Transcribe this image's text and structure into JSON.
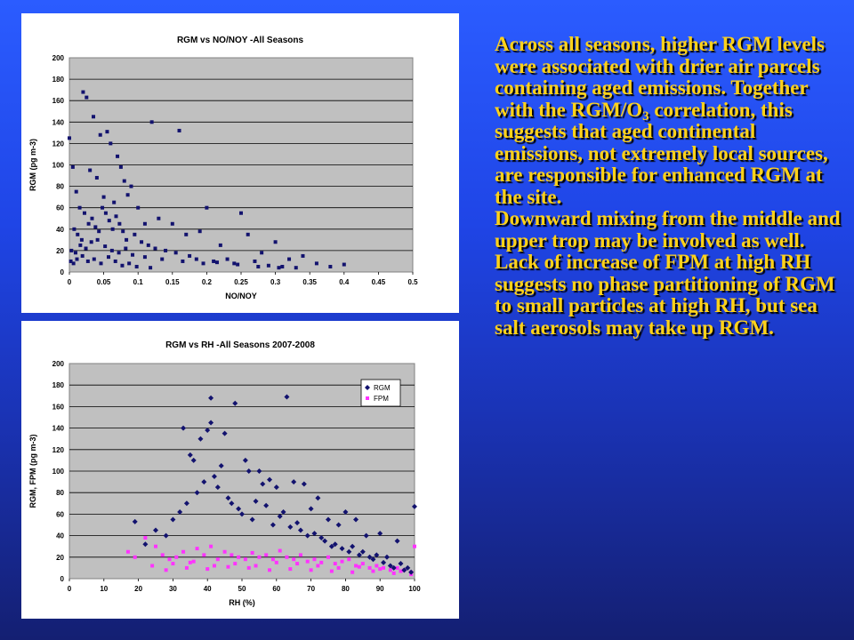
{
  "text": {
    "para1_a": "Across all seasons, higher RGM levels were associated with drier air parcels containing aged emissions.  Together with the RGM/O",
    "para1_sub": "3",
    "para1_b": " correlation, this suggests that aged continental emissions, not extremely local sources, are responsible for enhanced RGM at the site.",
    "para2": "Downward mixing from the middle and upper trop may be involved as well.",
    "para3": "Lack of increase of FPM at high RH suggests no phase partitioning of RGM to small particles at high RH, but sea salt aerosols may take up RGM."
  },
  "colors": {
    "rgm": "#12126e",
    "fpm": "#ff33ff",
    "plot_bg": "#c0c0c0",
    "text": "#ffd21a"
  },
  "chart_data": [
    {
      "type": "scatter",
      "title": "RGM vs NO/NOY -All Seasons",
      "xlabel": "NO/NOY",
      "ylabel": "RGM (pg m-3)",
      "xlim": [
        0,
        0.5
      ],
      "ylim": [
        0,
        200
      ],
      "xticks": [
        "0",
        "0.05",
        "0.1",
        "0.15",
        "0.2",
        "0.25",
        "0.3",
        "0.35",
        "0.4",
        "0.45",
        "0.5"
      ],
      "yticks": [
        "0",
        "20",
        "40",
        "60",
        "80",
        "100",
        "120",
        "140",
        "160",
        "180",
        "200"
      ],
      "grid": true,
      "legend": null,
      "series": [
        {
          "marker": "square",
          "x": [
            0.0,
            0.02,
            0.025,
            0.035,
            0.045,
            0.055,
            0.06,
            0.07,
            0.075,
            0.08,
            0.09,
            0.12,
            0.16,
            0.2,
            0.25,
            0.26,
            0.3,
            0.34,
            0.38,
            0.4,
            0.005,
            0.01,
            0.015,
            0.03,
            0.04,
            0.05,
            0.065,
            0.085,
            0.1,
            0.11,
            0.13,
            0.15,
            0.17,
            0.19,
            0.22,
            0.28,
            0.32,
            0.36,
            0.007,
            0.012,
            0.018,
            0.022,
            0.028,
            0.033,
            0.038,
            0.043,
            0.048,
            0.053,
            0.058,
            0.063,
            0.068,
            0.073,
            0.078,
            0.083,
            0.095,
            0.105,
            0.115,
            0.125,
            0.14,
            0.155,
            0.175,
            0.185,
            0.21,
            0.23,
            0.24,
            0.27,
            0.29,
            0.31,
            0.33,
            0.003,
            0.009,
            0.016,
            0.024,
            0.032,
            0.041,
            0.052,
            0.062,
            0.072,
            0.082,
            0.092,
            0.11,
            0.135,
            0.165,
            0.195,
            0.215,
            0.245,
            0.275,
            0.305,
            0.002,
            0.006,
            0.011,
            0.019,
            0.027,
            0.036,
            0.046,
            0.057,
            0.067,
            0.077,
            0.087,
            0.098,
            0.118
          ],
          "y": [
            125,
            168,
            163,
            145,
            128,
            131,
            120,
            108,
            98,
            85,
            80,
            140,
            132,
            60,
            55,
            35,
            28,
            15,
            5,
            7,
            98,
            75,
            60,
            95,
            88,
            70,
            65,
            72,
            60,
            45,
            50,
            45,
            35,
            38,
            25,
            18,
            12,
            8,
            40,
            35,
            30,
            55,
            45,
            50,
            42,
            38,
            60,
            55,
            48,
            40,
            52,
            45,
            38,
            30,
            35,
            28,
            25,
            22,
            20,
            18,
            15,
            12,
            10,
            12,
            8,
            10,
            6,
            5,
            4,
            20,
            18,
            25,
            22,
            28,
            30,
            24,
            20,
            18,
            22,
            16,
            14,
            12,
            10,
            8,
            9,
            7,
            5,
            4,
            10,
            8,
            12,
            15,
            10,
            12,
            8,
            14,
            10,
            6,
            8,
            5,
            4
          ]
        }
      ]
    },
    {
      "type": "scatter",
      "title": "RGM vs RH -All Seasons 2007-2008",
      "xlabel": "RH (%)",
      "ylabel": "RGM, FPM (pg m-3)",
      "xlim": [
        0,
        100
      ],
      "ylim": [
        0,
        200
      ],
      "xticks": [
        "0",
        "10",
        "20",
        "30",
        "40",
        "50",
        "60",
        "70",
        "80",
        "90",
        "100"
      ],
      "yticks": [
        "0",
        "20",
        "40",
        "60",
        "80",
        "100",
        "120",
        "140",
        "160",
        "180",
        "200"
      ],
      "grid": true,
      "legend": "top-right",
      "series": [
        {
          "name": "RGM",
          "marker": "diamond",
          "x": [
            41,
            63,
            48,
            41,
            33,
            40,
            45,
            38,
            35,
            36,
            44,
            52,
            51,
            55,
            56,
            58,
            60,
            65,
            68,
            72,
            70,
            75,
            78,
            80,
            83,
            86,
            90,
            95,
            100,
            19,
            22,
            25,
            28,
            30,
            32,
            34,
            37,
            39,
            42,
            43,
            46,
            47,
            49,
            50,
            53,
            54,
            57,
            59,
            61,
            62,
            64,
            66,
            67,
            69,
            71,
            73,
            74,
            76,
            77,
            79,
            81,
            82,
            84,
            85,
            87,
            88,
            89,
            91,
            92,
            93,
            94,
            96,
            97,
            98,
            99
          ],
          "y": [
            168,
            169,
            163,
            145,
            140,
            138,
            135,
            130,
            115,
            110,
            105,
            100,
            110,
            100,
            88,
            92,
            85,
            90,
            88,
            75,
            65,
            55,
            50,
            62,
            55,
            40,
            42,
            35,
            67,
            53,
            32,
            45,
            40,
            55,
            62,
            70,
            80,
            90,
            95,
            85,
            75,
            70,
            65,
            60,
            55,
            72,
            68,
            50,
            58,
            62,
            48,
            52,
            45,
            40,
            42,
            38,
            35,
            30,
            32,
            28,
            25,
            30,
            22,
            25,
            20,
            18,
            22,
            15,
            20,
            12,
            10,
            14,
            8,
            10,
            6
          ]
        },
        {
          "name": "FPM",
          "marker": "square",
          "x": [
            17,
            19,
            22,
            25,
            27,
            29,
            31,
            33,
            35,
            37,
            39,
            41,
            43,
            45,
            47,
            49,
            51,
            53,
            55,
            57,
            59,
            61,
            63,
            65,
            67,
            69,
            71,
            73,
            75,
            77,
            79,
            81,
            83,
            85,
            87,
            89,
            91,
            93,
            95,
            97,
            99,
            100,
            24,
            30,
            36,
            42,
            48,
            54,
            60,
            66,
            72,
            78,
            84,
            90,
            96,
            28,
            34,
            40,
            46,
            52,
            58,
            64,
            70,
            76,
            82,
            88,
            94,
            99
          ],
          "y": [
            25,
            20,
            38,
            30,
            22,
            18,
            20,
            25,
            15,
            28,
            22,
            30,
            18,
            25,
            22,
            20,
            18,
            24,
            20,
            22,
            18,
            26,
            20,
            18,
            22,
            16,
            18,
            15,
            20,
            14,
            16,
            18,
            12,
            14,
            10,
            12,
            10,
            8,
            10,
            8,
            6,
            30,
            12,
            14,
            16,
            12,
            14,
            12,
            15,
            14,
            12,
            10,
            11,
            9,
            7,
            8,
            10,
            9,
            11,
            10,
            8,
            9,
            8,
            7,
            6,
            7,
            5,
            4
          ]
        }
      ]
    }
  ]
}
